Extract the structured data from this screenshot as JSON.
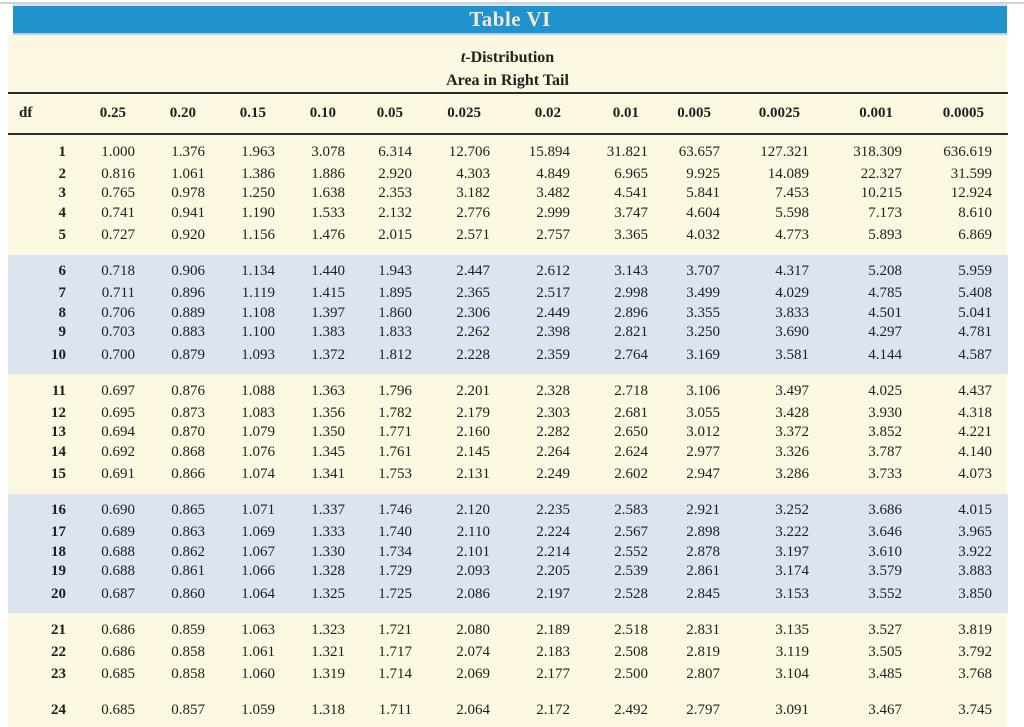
{
  "banner": {
    "title": "Table VI"
  },
  "subtitle": {
    "italic_part": "t",
    "rest_part": "-Distribution",
    "line2": "Area in Right Tail"
  },
  "colors": {
    "banner_blue": "#2093cc",
    "page_cream": "#fbf7e1",
    "band_blue": "#dce3f1",
    "rule_black": "#2b2b2b"
  },
  "table": {
    "df_header": "df",
    "columns": [
      "0.25",
      "0.20",
      "0.15",
      "0.10",
      "0.05",
      "0.025",
      "0.02",
      "0.01",
      "0.005",
      "0.0025",
      "0.001",
      "0.0005"
    ],
    "groups": [
      {
        "band": false,
        "rows": [
          {
            "df": "1",
            "values": [
              "1.000",
              "1.376",
              "1.963",
              "3.078",
              "6.314",
              "12.706",
              "15.894",
              "31.821",
              "63.657",
              "127.321",
              "318.309",
              "636.619"
            ]
          },
          {
            "df": "2",
            "values": [
              "0.816",
              "1.061",
              "1.386",
              "1.886",
              "2.920",
              "4.303",
              "4.849",
              "6.965",
              "9.925",
              "14.089",
              "22.327",
              "31.599"
            ]
          },
          {
            "df": "3",
            "values": [
              "0.765",
              "0.978",
              "1.250",
              "1.638",
              "2.353",
              "3.182",
              "3.482",
              "4.541",
              "5.841",
              "7.453",
              "10.215",
              "12.924"
            ]
          },
          {
            "df": "4",
            "values": [
              "0.741",
              "0.941",
              "1.190",
              "1.533",
              "2.132",
              "2.776",
              "2.999",
              "3.747",
              "4.604",
              "5.598",
              "7.173",
              "8.610"
            ]
          },
          {
            "df": "5",
            "values": [
              "0.727",
              "0.920",
              "1.156",
              "1.476",
              "2.015",
              "2.571",
              "2.757",
              "3.365",
              "4.032",
              "4.773",
              "5.893",
              "6.869"
            ]
          }
        ]
      },
      {
        "band": true,
        "rows": [
          {
            "df": "6",
            "values": [
              "0.718",
              "0.906",
              "1.134",
              "1.440",
              "1.943",
              "2.447",
              "2.612",
              "3.143",
              "3.707",
              "4.317",
              "5.208",
              "5.959"
            ]
          },
          {
            "df": "7",
            "values": [
              "0.711",
              "0.896",
              "1.119",
              "1.415",
              "1.895",
              "2.365",
              "2.517",
              "2.998",
              "3.499",
              "4.029",
              "4.785",
              "5.408"
            ]
          },
          {
            "df": "8",
            "values": [
              "0.706",
              "0.889",
              "1.108",
              "1.397",
              "1.860",
              "2.306",
              "2.449",
              "2.896",
              "3.355",
              "3.833",
              "4.501",
              "5.041"
            ]
          },
          {
            "df": "9",
            "values": [
              "0.703",
              "0.883",
              "1.100",
              "1.383",
              "1.833",
              "2.262",
              "2.398",
              "2.821",
              "3.250",
              "3.690",
              "4.297",
              "4.781"
            ]
          },
          {
            "df": "10",
            "values": [
              "0.700",
              "0.879",
              "1.093",
              "1.372",
              "1.812",
              "2.228",
              "2.359",
              "2.764",
              "3.169",
              "3.581",
              "4.144",
              "4.587"
            ]
          }
        ]
      },
      {
        "band": false,
        "rows": [
          {
            "df": "11",
            "values": [
              "0.697",
              "0.876",
              "1.088",
              "1.363",
              "1.796",
              "2.201",
              "2.328",
              "2.718",
              "3.106",
              "3.497",
              "4.025",
              "4.437"
            ]
          },
          {
            "df": "12",
            "values": [
              "0.695",
              "0.873",
              "1.083",
              "1.356",
              "1.782",
              "2.179",
              "2.303",
              "2.681",
              "3.055",
              "3.428",
              "3.930",
              "4.318"
            ]
          },
          {
            "df": "13",
            "values": [
              "0.694",
              "0.870",
              "1.079",
              "1.350",
              "1.771",
              "2.160",
              "2.282",
              "2.650",
              "3.012",
              "3.372",
              "3.852",
              "4.221"
            ]
          },
          {
            "df": "14",
            "values": [
              "0.692",
              "0.868",
              "1.076",
              "1.345",
              "1.761",
              "2.145",
              "2.264",
              "2.624",
              "2.977",
              "3.326",
              "3.787",
              "4.140"
            ]
          },
          {
            "df": "15",
            "values": [
              "0.691",
              "0.866",
              "1.074",
              "1.341",
              "1.753",
              "2.131",
              "2.249",
              "2.602",
              "2.947",
              "3.286",
              "3.733",
              "4.073"
            ]
          }
        ]
      },
      {
        "band": true,
        "rows": [
          {
            "df": "16",
            "values": [
              "0.690",
              "0.865",
              "1.071",
              "1.337",
              "1.746",
              "2.120",
              "2.235",
              "2.583",
              "2.921",
              "3.252",
              "3.686",
              "4.015"
            ]
          },
          {
            "df": "17",
            "values": [
              "0.689",
              "0.863",
              "1.069",
              "1.333",
              "1.740",
              "2.110",
              "2.224",
              "2.567",
              "2.898",
              "3.222",
              "3.646",
              "3.965"
            ]
          },
          {
            "df": "18",
            "values": [
              "0.688",
              "0.862",
              "1.067",
              "1.330",
              "1.734",
              "2.101",
              "2.214",
              "2.552",
              "2.878",
              "3.197",
              "3.610",
              "3.922"
            ]
          },
          {
            "df": "19",
            "values": [
              "0.688",
              "0.861",
              "1.066",
              "1.328",
              "1.729",
              "2.093",
              "2.205",
              "2.539",
              "2.861",
              "3.174",
              "3.579",
              "3.883"
            ]
          },
          {
            "df": "20",
            "values": [
              "0.687",
              "0.860",
              "1.064",
              "1.325",
              "1.725",
              "2.086",
              "2.197",
              "2.528",
              "2.845",
              "3.153",
              "3.552",
              "3.850"
            ]
          }
        ]
      },
      {
        "band": false,
        "rows": [
          {
            "df": "21",
            "values": [
              "0.686",
              "0.859",
              "1.063",
              "1.323",
              "1.721",
              "2.080",
              "2.189",
              "2.518",
              "2.831",
              "3.135",
              "3.527",
              "3.819"
            ]
          },
          {
            "df": "22",
            "values": [
              "0.686",
              "0.858",
              "1.061",
              "1.321",
              "1.717",
              "2.074",
              "2.183",
              "2.508",
              "2.819",
              "3.119",
              "3.505",
              "3.792"
            ]
          },
          {
            "df": "23",
            "values": [
              "0.685",
              "0.858",
              "1.060",
              "1.319",
              "1.714",
              "2.069",
              "2.177",
              "2.500",
              "2.807",
              "3.104",
              "3.485",
              "3.768"
            ]
          }
        ]
      }
    ],
    "partial_next_row": {
      "df": "24",
      "values": [
        "0.685",
        "0.857",
        "1.059",
        "1.318",
        "1.711",
        "2.064",
        "2.172",
        "2.492",
        "2.797",
        "3.091",
        "3.467",
        "3.745"
      ]
    }
  }
}
